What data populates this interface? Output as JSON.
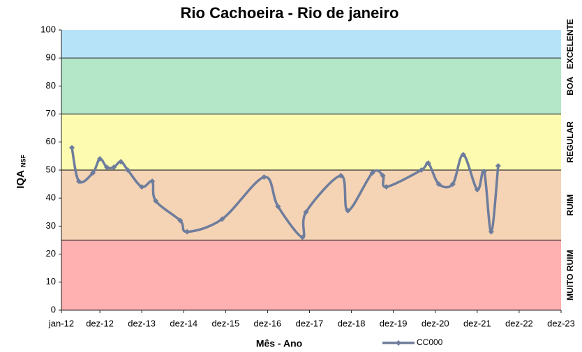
{
  "chart_data": {
    "type": "line",
    "title": "Rio Cachoeira - Rio de janeiro",
    "y_label": "IQA",
    "y_label_sub": "NSF",
    "x_label": "Mês - Ano",
    "xlim": [
      "2012-01",
      "2023-12"
    ],
    "xticks": [
      {
        "value": "2012-01",
        "label": "jan-12"
      },
      {
        "value": "2012-12",
        "label": "dez-12"
      },
      {
        "value": "2013-12",
        "label": "dez-13"
      },
      {
        "value": "2014-12",
        "label": "dez-14"
      },
      {
        "value": "2015-12",
        "label": "dez-15"
      },
      {
        "value": "2016-12",
        "label": "dez-16"
      },
      {
        "value": "2017-12",
        "label": "dez-17"
      },
      {
        "value": "2018-12",
        "label": "dez-18"
      },
      {
        "value": "2019-12",
        "label": "dez-19"
      },
      {
        "value": "2020-12",
        "label": "dez-20"
      },
      {
        "value": "2021-12",
        "label": "dez-21"
      },
      {
        "value": "2022-12",
        "label": "dez-22"
      },
      {
        "value": "2023-12",
        "label": "dez-23"
      }
    ],
    "ylim": [
      0,
      100
    ],
    "yticks": [
      0,
      10,
      20,
      30,
      40,
      50,
      60,
      70,
      80,
      90,
      100
    ],
    "bands": [
      {
        "label": "MUITO RUIM",
        "from": 0,
        "to": 25,
        "color": "#ffb0b0"
      },
      {
        "label": "RUIM",
        "from": 25,
        "to": 50,
        "color": "#f5d3b5"
      },
      {
        "label": "REGULAR",
        "from": 50,
        "to": 70,
        "color": "#fdfbb0"
      },
      {
        "label": "BOA",
        "from": 70,
        "to": 90,
        "color": "#b4e6c8"
      },
      {
        "label": "EXCELENTE",
        "from": 90,
        "to": 100,
        "color": "#b6e3f7"
      }
    ],
    "legend": "bottom",
    "series": [
      {
        "name": "CC000",
        "color": "#6e7d9c",
        "x": [
          "2012-04",
          "2012-06",
          "2012-10",
          "2012-12",
          "2013-02",
          "2013-04",
          "2013-06",
          "2013-08",
          "2013-12",
          "2014-03",
          "2014-04",
          "2014-11",
          "2015-01",
          "2015-11",
          "2016-11",
          "2017-03",
          "2017-10",
          "2017-11",
          "2018-09",
          "2018-11",
          "2019-06",
          "2019-09",
          "2019-10",
          "2020-08",
          "2020-10",
          "2021-01",
          "2021-05",
          "2021-08",
          "2021-12",
          "2022-02",
          "2022-04",
          "2022-06"
        ],
        "values": [
          58,
          46,
          49,
          54,
          51,
          51,
          53,
          50,
          44,
          46,
          39,
          32,
          28,
          32.5,
          47.5,
          37,
          26,
          35,
          48,
          35.5,
          49,
          48,
          44,
          50,
          52.5,
          45,
          45,
          55.5,
          43,
          49.5,
          28,
          51.5
        ]
      }
    ]
  }
}
